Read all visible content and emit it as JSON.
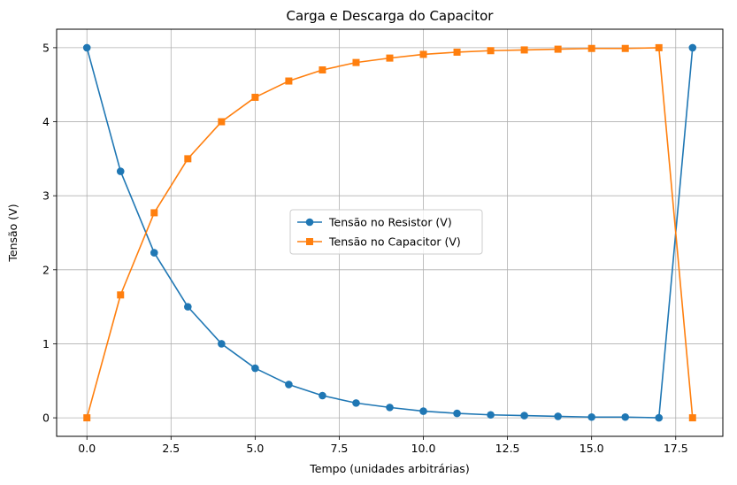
{
  "chart_data": {
    "type": "line",
    "title": "Carga e Descarga do Capacitor",
    "xlabel": "Tempo (unidades arbitrárias)",
    "ylabel": "Tensão (V)",
    "xlim": [
      -0.9,
      18.9
    ],
    "ylim": [
      -0.25,
      5.25
    ],
    "x_ticks": [
      0.0,
      2.5,
      5.0,
      7.5,
      10.0,
      12.5,
      15.0,
      17.5
    ],
    "x_tick_labels": [
      "0.0",
      "2.5",
      "5.0",
      "7.5",
      "10.0",
      "12.5",
      "15.0",
      "17.5"
    ],
    "y_ticks": [
      0,
      1,
      2,
      3,
      4,
      5
    ],
    "y_tick_labels": [
      "0",
      "1",
      "2",
      "3",
      "4",
      "5"
    ],
    "grid": true,
    "legend_position": "center-right",
    "x": [
      0,
      1,
      2,
      3,
      4,
      5,
      6,
      7,
      8,
      9,
      10,
      11,
      12,
      13,
      14,
      15,
      16,
      17,
      18
    ],
    "series": [
      {
        "name": "Tensão no Resistor (V)",
        "color": "#1f77b4",
        "marker": "circle",
        "values": [
          5.0,
          3.33,
          2.23,
          1.5,
          1.0,
          0.67,
          0.45,
          0.3,
          0.2,
          0.14,
          0.09,
          0.06,
          0.04,
          0.03,
          0.02,
          0.01,
          0.01,
          0.0,
          5.0
        ]
      },
      {
        "name": "Tensão no Capacitor (V)",
        "color": "#ff7f0e",
        "marker": "square",
        "values": [
          0.0,
          1.66,
          2.77,
          3.5,
          4.0,
          4.33,
          4.55,
          4.7,
          4.8,
          4.86,
          4.91,
          4.94,
          4.96,
          4.97,
          4.98,
          4.99,
          4.99,
          5.0,
          0.0
        ]
      }
    ]
  }
}
